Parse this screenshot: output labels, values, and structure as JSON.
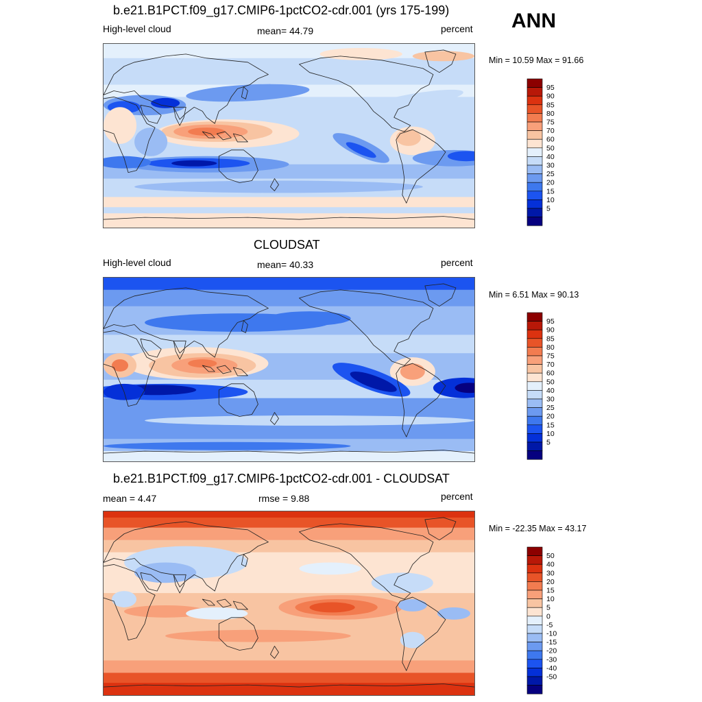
{
  "season": "ANN",
  "colors": {
    "model_obs_scale": [
      "#06007f",
      "#0018a8",
      "#0430d8",
      "#1c54f0",
      "#3e78ee",
      "#6c9af0",
      "#9abcf4",
      "#c6dcf8",
      "#e4f0fc",
      "#fde4d2",
      "#f8c4a2",
      "#f8a07a",
      "#f27c50",
      "#e85428",
      "#dc3210",
      "#b81808",
      "#8c0000"
    ],
    "diff_scale": [
      "#06007f",
      "#0018a8",
      "#0430d8",
      "#1c54f0",
      "#3e78ee",
      "#6c9af0",
      "#9abcf4",
      "#c6dcf8",
      "#e4f0fc",
      "#fde4d2",
      "#f8c4a2",
      "#f8a07a",
      "#f27c50",
      "#e85428",
      "#dc3210",
      "#b81808",
      "#8c0000"
    ]
  },
  "panels": [
    {
      "title": "b.e21.B1PCT.f09_g17.CMIP6-1pctCO2-cdr.001 (yrs 175-199)",
      "left_label": "High-level cloud",
      "center_label": "mean=  44.79",
      "right_label": "percent",
      "minmax": "Min =  10.59 Max =  91.66",
      "colorbar_labels": [
        "95",
        "90",
        "85",
        "80",
        "75",
        "70",
        "60",
        "50",
        "40",
        "30",
        "25",
        "20",
        "15",
        "10",
        "5"
      ]
    },
    {
      "title": "CLOUDSAT",
      "left_label": "High-level cloud",
      "center_label": "mean=  40.33",
      "right_label": "percent",
      "minmax": "Min =   6.51 Max =  90.13",
      "colorbar_labels": [
        "95",
        "90",
        "85",
        "80",
        "75",
        "70",
        "60",
        "50",
        "40",
        "30",
        "25",
        "20",
        "15",
        "10",
        "5"
      ]
    },
    {
      "title": "b.e21.B1PCT.f09_g17.CMIP6-1pctCO2-cdr.001 - CLOUDSAT",
      "left_label": "mean =   4.47",
      "center_label": "rmse =   9.88",
      "right_label": "percent",
      "minmax": "Min = -22.35 Max =  43.17",
      "colorbar_labels": [
        "50",
        "40",
        "30",
        "20",
        "15",
        "10",
        "5",
        "0",
        "-5",
        "-10",
        "-15",
        "-20",
        "-30",
        "-40",
        "-50"
      ]
    }
  ]
}
